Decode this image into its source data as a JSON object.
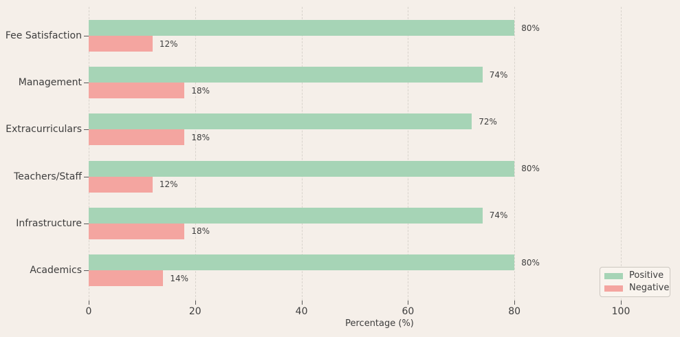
{
  "chart_data": {
    "type": "bar",
    "orientation": "horizontal",
    "title": "",
    "categories": [
      "Fee Satisfaction",
      "Management",
      "Extracurriculars",
      "Teachers/Staff",
      "Infrastructure",
      "Academics"
    ],
    "series": [
      {
        "name": "Positive",
        "color": "#a6d4b6",
        "values": [
          80,
          74,
          72,
          80,
          74,
          80
        ]
      },
      {
        "name": "Negative",
        "color": "#f4a5a0",
        "values": [
          12,
          18,
          18,
          12,
          18,
          14
        ]
      }
    ],
    "value_label_format": "{value}%",
    "xlabel": "Percentage (%)",
    "x_ticks": [
      0,
      20,
      40,
      60,
      80,
      100
    ],
    "xlim": [
      0,
      109.3
    ],
    "grid": {
      "axis": "x",
      "style": "dashed",
      "color": "#d8d3cc"
    },
    "legend": {
      "position": "lower right",
      "items": [
        "Positive",
        "Negative"
      ]
    },
    "colors": {
      "background": "#f5efe9",
      "text": "#3d3d3d",
      "tick": "#555555"
    }
  }
}
